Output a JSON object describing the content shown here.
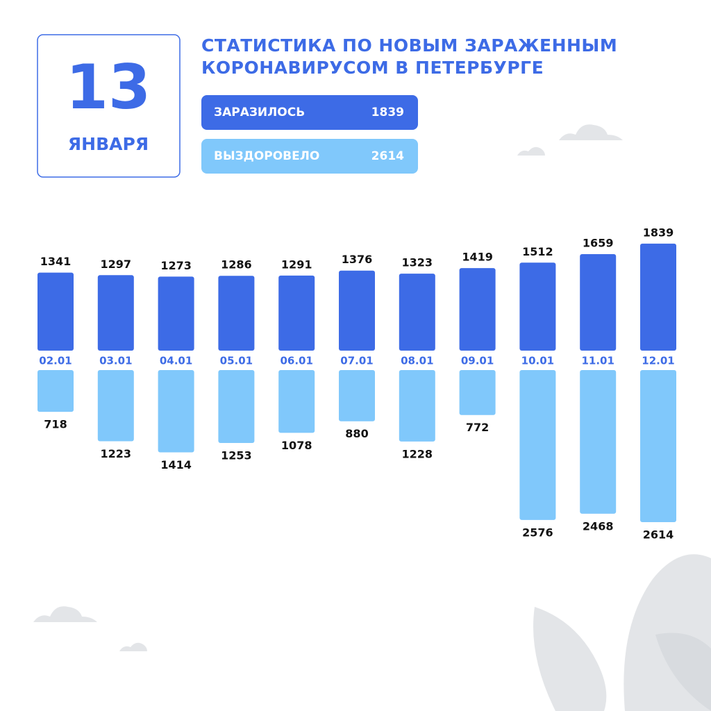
{
  "header": {
    "day": "13",
    "month": "ЯНВАРЯ",
    "title": "СТАТИСТИКА ПО НОВЫМ ЗАРАЖЕННЫМ КОРОНАВИРУСОМ В ПЕТЕРБУРГЕ"
  },
  "chart_data": {
    "type": "diverging-bar",
    "categories": [
      "02.01",
      "03.01",
      "04.01",
      "05.01",
      "06.01",
      "07.01",
      "08.01",
      "09.01",
      "10.01",
      "11.01",
      "12.01"
    ],
    "series": [
      {
        "name": "ЗАРАЗИЛОСЬ",
        "color": "#3d6be6",
        "values": [
          1341,
          1297,
          1273,
          1286,
          1291,
          1376,
          1323,
          1419,
          1512,
          1659,
          1839
        ]
      },
      {
        "name": "ВЫЗДОРОВЕЛО",
        "color": "#80c8fb",
        "values": [
          718,
          1223,
          1414,
          1253,
          1078,
          880,
          1228,
          772,
          2576,
          2468,
          2614
        ]
      }
    ]
  }
}
